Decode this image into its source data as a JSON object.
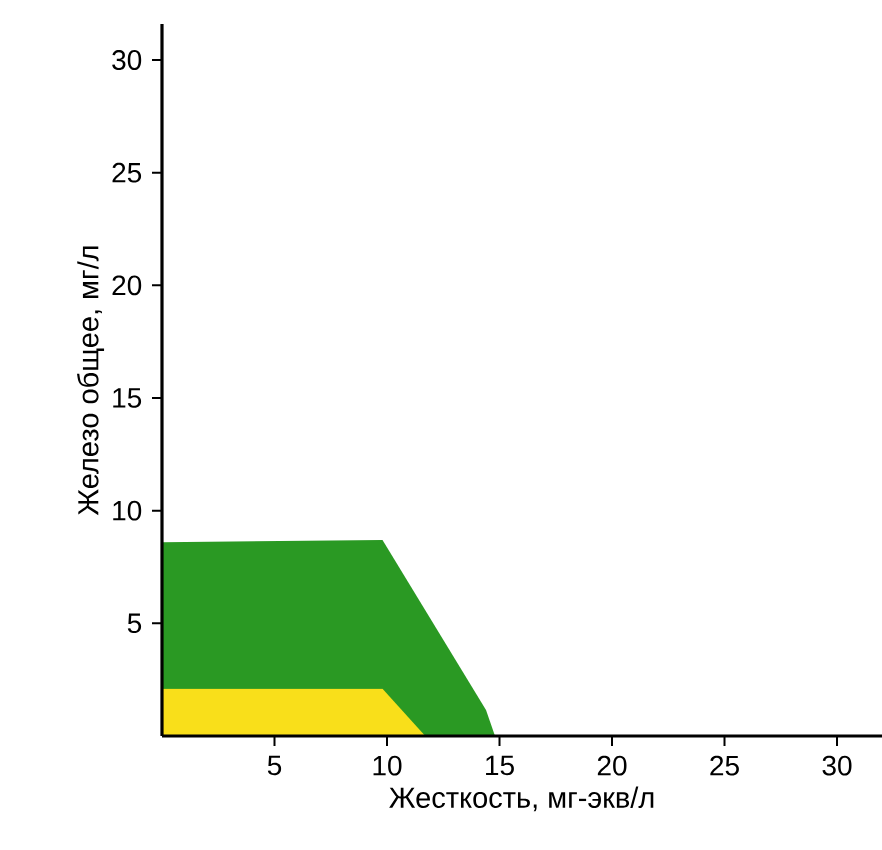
{
  "chart_data": {
    "type": "area",
    "xlabel": "Жесткость, мг-экв/л",
    "ylabel": "Железо общее, мг/л",
    "xlim": [
      0,
      32
    ],
    "ylim": [
      0,
      31.6
    ],
    "xticks": [
      5,
      10,
      15,
      20,
      25,
      30
    ],
    "yticks": [
      5,
      10,
      15,
      20,
      25,
      30
    ],
    "series": [
      {
        "color": "#2a9923",
        "x": [
          0,
          9.8,
          14.4,
          14.8
        ],
        "values": [
          8.6,
          8.7,
          1.15,
          0
        ]
      },
      {
        "color": "#f9df1a",
        "x": [
          0,
          9.8,
          11.7
        ],
        "values": [
          2.1,
          2.1,
          0
        ]
      }
    ]
  }
}
